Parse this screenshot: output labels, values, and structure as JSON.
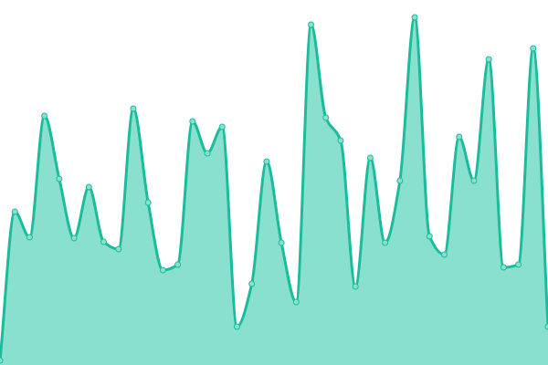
{
  "chart_data": {
    "type": "area",
    "title": "",
    "xlabel": "",
    "ylabel": "",
    "grid": false,
    "axes_visible": false,
    "ylim": [
      0,
      400
    ],
    "smooth": true,
    "colors": {
      "line": "#1abc9c",
      "fill": "#8ae0ce",
      "marker_fill": "#8ae0ce"
    },
    "values": [
      5,
      168,
      140,
      273,
      204,
      139,
      195,
      135,
      127,
      281,
      178,
      104,
      110,
      267,
      232,
      261,
      42,
      89,
      223,
      134,
      69,
      373,
      271,
      246,
      86,
      227,
      134,
      202,
      381,
      141,
      121,
      250,
      202,
      335,
      107,
      110,
      347,
      42
    ]
  }
}
